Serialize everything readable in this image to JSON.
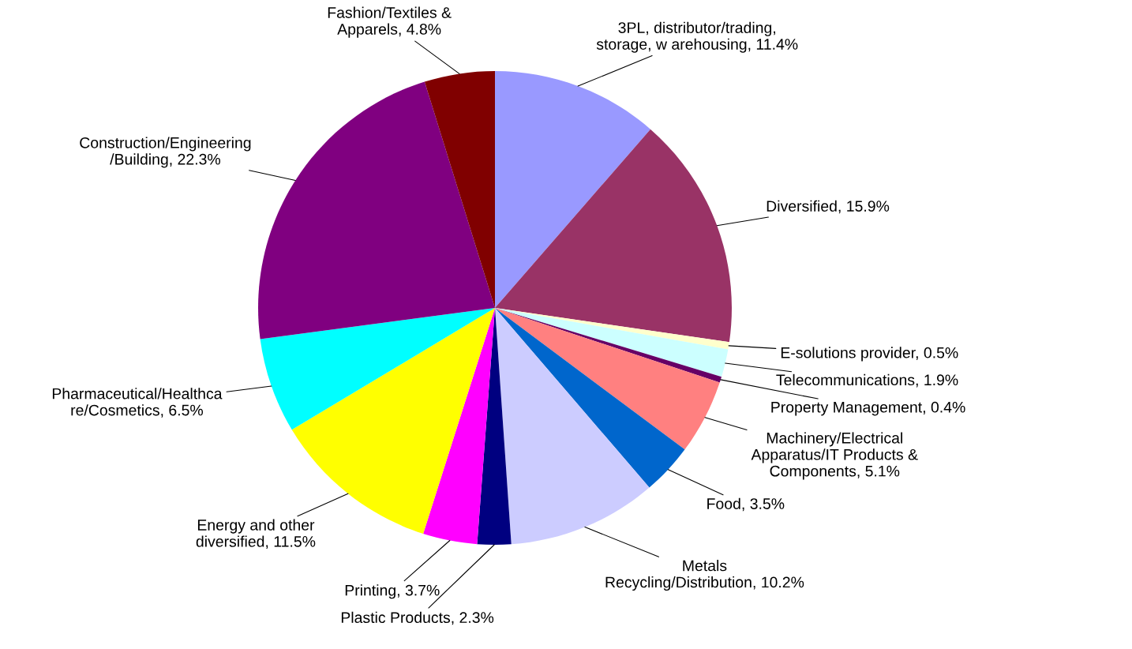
{
  "chart_data": {
    "type": "pie",
    "categories": [
      "3PL, distributor/trading,\nstorage, w arehousing",
      "Diversified",
      "E-solutions provider",
      "Telecommunications",
      "Property Management",
      "Machinery/Electrical\nApparatus/IT Products &\nComponents",
      "Food",
      "Metals\nRecycling/Distribution",
      "Plastic Products",
      "Printing",
      "Energy and other\ndiversified",
      "Pharmaceutical/Healthca\nre/Cosmetics",
      "Construction/Engineering\n/Building",
      "Fashion/Textiles &\nApparels"
    ],
    "values": [
      11.4,
      15.9,
      0.5,
      1.9,
      0.4,
      5.1,
      3.5,
      10.2,
      2.3,
      3.7,
      11.5,
      6.5,
      22.3,
      4.8
    ],
    "value_labels": [
      "11.4%",
      "15.9%",
      "0.5%",
      "1.9%",
      "0.4%",
      "5.1%",
      "3.5%",
      "10.2%",
      "2.3%",
      "3.7%",
      "11.5%",
      "6.5%",
      "22.3%",
      "4.8%"
    ],
    "colors": [
      "#9999ff",
      "#993366",
      "#ffffcc",
      "#ccffff",
      "#660066",
      "#ff8080",
      "#0066cc",
      "#ccccff",
      "#000080",
      "#ff00ff",
      "#ffff00",
      "#00ffff",
      "#800080",
      "#800000"
    ],
    "legend": false
  }
}
